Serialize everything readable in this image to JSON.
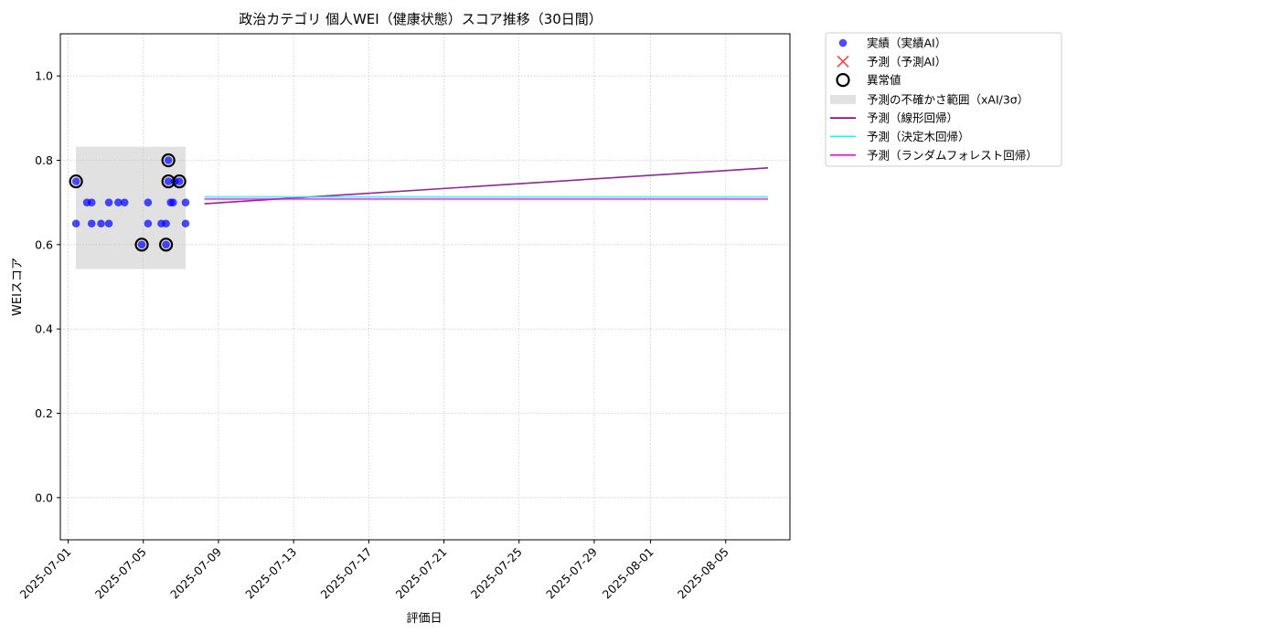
{
  "chart_data": {
    "type": "scatter",
    "title": "政治カテゴリ 個人WEI（健康状態）スコア推移（30日間）",
    "xlabel": "評価日",
    "ylabel": "WEIスコア",
    "xlim": [
      "2025-06-30T14:00",
      "2025-08-08T10:00"
    ],
    "ylim": [
      -0.1,
      1.1
    ],
    "grid": true,
    "legend_position": "outside-top-right",
    "x_ticks": [
      "2025-07-01",
      "2025-07-05",
      "2025-07-09",
      "2025-07-13",
      "2025-07-17",
      "2025-07-21",
      "2025-07-25",
      "2025-07-29",
      "2025-08-01",
      "2025-08-05"
    ],
    "y_ticks": [
      "0.0",
      "0.2",
      "0.4",
      "0.6",
      "0.8",
      "1.0"
    ],
    "series": [
      {
        "name": "実績（実績AI）",
        "kind": "scatter",
        "color": "#0000ff",
        "points": [
          {
            "x": "2025-07-01T10:00",
            "y": 0.65
          },
          {
            "x": "2025-07-01T10:00",
            "y": 0.75
          },
          {
            "x": "2025-07-02T00:00",
            "y": 0.7
          },
          {
            "x": "2025-07-02T06:00",
            "y": 0.7
          },
          {
            "x": "2025-07-02T06:00",
            "y": 0.65
          },
          {
            "x": "2025-07-02T18:00",
            "y": 0.65
          },
          {
            "x": "2025-07-03T04:00",
            "y": 0.7
          },
          {
            "x": "2025-07-03T04:00",
            "y": 0.65
          },
          {
            "x": "2025-07-03T16:00",
            "y": 0.7
          },
          {
            "x": "2025-07-04T00:00",
            "y": 0.7
          },
          {
            "x": "2025-07-04T22:00",
            "y": 0.6
          },
          {
            "x": "2025-07-05T06:00",
            "y": 0.7
          },
          {
            "x": "2025-07-05T06:00",
            "y": 0.65
          },
          {
            "x": "2025-07-05T23:00",
            "y": 0.65
          },
          {
            "x": "2025-07-06T05:00",
            "y": 0.65
          },
          {
            "x": "2025-07-06T05:00",
            "y": 0.6
          },
          {
            "x": "2025-07-06T08:00",
            "y": 0.8
          },
          {
            "x": "2025-07-06T08:00",
            "y": 0.75
          },
          {
            "x": "2025-07-06T11:00",
            "y": 0.7
          },
          {
            "x": "2025-07-06T14:00",
            "y": 0.7
          },
          {
            "x": "2025-07-06T16:00",
            "y": 0.75
          },
          {
            "x": "2025-07-06T22:00",
            "y": 0.75
          },
          {
            "x": "2025-07-07T06:00",
            "y": 0.7
          },
          {
            "x": "2025-07-07T06:00",
            "y": 0.65
          }
        ]
      },
      {
        "name": "予測（予測AI）",
        "kind": "scatter",
        "color": "#ff0000",
        "points": []
      },
      {
        "name": "異常値",
        "kind": "outlier",
        "color": "#000000",
        "points": [
          {
            "x": "2025-07-01T10:00",
            "y": 0.75
          },
          {
            "x": "2025-07-04T22:00",
            "y": 0.6
          },
          {
            "x": "2025-07-06T05:00",
            "y": 0.6
          },
          {
            "x": "2025-07-06T08:00",
            "y": 0.8
          },
          {
            "x": "2025-07-06T08:00",
            "y": 0.75
          },
          {
            "x": "2025-07-06T22:00",
            "y": 0.75
          }
        ]
      },
      {
        "name": "予測の不確かさ範囲（xAI/3σ）",
        "kind": "band",
        "color": "#bdbdbd",
        "x_start": "2025-07-01T10:00",
        "x_end": "2025-07-07T06:00",
        "y_low": 0.542,
        "y_high": 0.832
      },
      {
        "name": "予測（線形回帰）",
        "kind": "line",
        "color": "#800080",
        "points": [
          {
            "x": "2025-07-08T06:00",
            "y": 0.697
          },
          {
            "x": "2025-08-07T06:00",
            "y": 0.782
          }
        ]
      },
      {
        "name": "予測（決定木回帰）",
        "kind": "line",
        "color": "#00ffff",
        "points": [
          {
            "x": "2025-07-08T06:00",
            "y": 0.713
          },
          {
            "x": "2025-08-07T06:00",
            "y": 0.713
          }
        ]
      },
      {
        "name": "予測（ランダムフォレスト回帰）",
        "kind": "line",
        "color": "#ff00ff",
        "points": [
          {
            "x": "2025-07-08T06:00",
            "y": 0.708
          },
          {
            "x": "2025-08-07T06:00",
            "y": 0.708
          }
        ]
      }
    ]
  }
}
